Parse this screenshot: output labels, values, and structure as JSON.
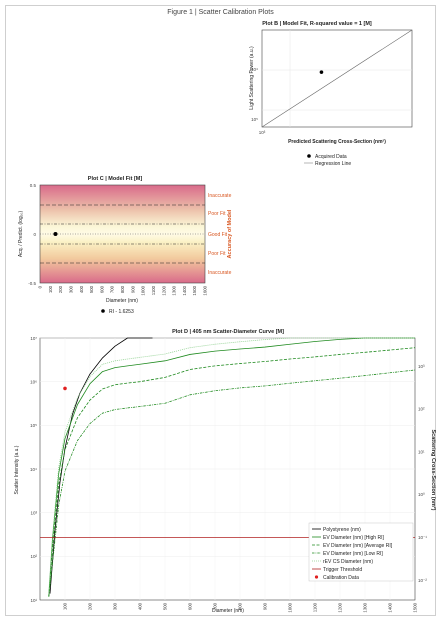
{
  "figure": {
    "title": "Figure 1 | Scatter Calibration Plots"
  },
  "chart_data": [
    {
      "id": "plot_b",
      "type": "line",
      "title": "Plot B | Model Fit, R-squared value = 1 [M]",
      "xlabel": "Predicted Scattering Cross-Section (nm²)",
      "ylabel": "Light Scattering Power (a.u.)",
      "x_scale": "log",
      "y_scale": "log",
      "x_ticks": [
        "10³"
      ],
      "y_ticks": [
        "10⁵",
        "10⁴"
      ],
      "series": [
        {
          "name": "Acquired Data",
          "kind": "scatter",
          "x": [
            3000
          ],
          "y": [
            8000
          ]
        },
        {
          "name": "Regression Line",
          "kind": "line",
          "x": [
            300,
            100000
          ],
          "y": [
            300,
            100000
          ]
        }
      ]
    },
    {
      "id": "plot_c",
      "type": "scatter",
      "title": "Plot C | Model Fit [M]",
      "xlabel": "Diameter (nm)",
      "ylabel": "Acq. / Predict. (log₁₀)",
      "secondary_ylabel": "Accuracy of Model",
      "xlim": [
        0,
        1600
      ],
      "ylim": [
        -0.5,
        0.5
      ],
      "x_ticks": [
        "0",
        "100",
        "200",
        "300",
        "400",
        "500",
        "600",
        "700",
        "800",
        "900",
        "1000",
        "1100",
        "1200",
        "1300",
        "1400",
        "1500",
        "1600"
      ],
      "y_ticks": [
        "0.5",
        "0",
        "-0.5"
      ],
      "zone_labels": [
        "Inaccurate",
        "Poor Fit",
        "Good Fit",
        "Poor Fit",
        "Inaccurate"
      ],
      "series": [
        {
          "name": "RI - 1.6253",
          "kind": "scatter",
          "x": [
            150
          ],
          "y": [
            0.0
          ]
        }
      ]
    },
    {
      "id": "plot_d",
      "type": "line",
      "title": "Plot D | 405 nm Scatter-Diameter Curve [M]",
      "xlabel": "Diameter (nm)",
      "ylabel": "Scatter Intensity (a.u.)",
      "secondary_ylabel": "Scattering Cross-Section (nm²)",
      "xlim": [
        0,
        1500
      ],
      "y_scale": "log",
      "ylim": [
        10,
        10000000
      ],
      "x_ticks": [
        "100",
        "200",
        "300",
        "400",
        "500",
        "600",
        "700",
        "800",
        "900",
        "1000",
        "1100",
        "1200",
        "1300",
        "1400",
        "1500"
      ],
      "y_ticks": [
        "10⁷",
        "10⁶",
        "10⁵",
        "10⁴",
        "10³",
        "10²",
        "10¹"
      ],
      "y2_ticks": [
        "10³",
        "10²",
        "10¹",
        "10⁰",
        "10⁻¹",
        "10⁻²"
      ],
      "series": [
        {
          "name": "Polystyrene (nm)",
          "kind": "line",
          "x": [
            40,
            60,
            80,
            100,
            130,
            160,
            200,
            250,
            300,
            350,
            400,
            450
          ],
          "y": [
            14,
            400,
            5000,
            30000,
            180000,
            550000,
            1500000,
            3500000,
            6500000,
            10000000,
            13000000,
            16000000
          ]
        },
        {
          "name": "EV Diameter (nm) [High RI]",
          "kind": "line",
          "x": [
            35,
            50,
            75,
            100,
            150,
            200,
            250,
            300,
            350,
            400,
            500,
            600,
            700,
            800,
            900,
            1000,
            1100,
            1200,
            1300,
            1400,
            1500
          ],
          "y": [
            12,
            250,
            8000,
            50000,
            300000,
            900000,
            1700000,
            2100000,
            2300000,
            2500000,
            3000000,
            4200000,
            5000000,
            5600000,
            6200000,
            7200000,
            8300000,
            9300000,
            10500000,
            12000000,
            13500000
          ]
        },
        {
          "name": "EV Diameter (nm) [Average RI]",
          "kind": "line",
          "x": [
            35,
            50,
            75,
            100,
            150,
            200,
            250,
            300,
            350,
            400,
            500,
            600,
            700,
            800,
            900,
            1000,
            1100,
            1200,
            1300,
            1400,
            1500
          ],
          "y": [
            12,
            150,
            4500,
            28000,
            150000,
            380000,
            680000,
            850000,
            930000,
            1000000,
            1250000,
            1900000,
            2300000,
            2600000,
            2900000,
            3300000,
            3700000,
            4200000,
            4700000,
            5300000,
            6000000
          ]
        },
        {
          "name": "EV Diameter (nm) [Low RI]",
          "kind": "line",
          "x": [
            35,
            50,
            75,
            100,
            150,
            200,
            250,
            300,
            350,
            400,
            500,
            600,
            700,
            800,
            900,
            1000,
            1100,
            1200,
            1300,
            1400,
            1500
          ],
          "y": [
            12,
            70,
            1500,
            9000,
            45000,
            110000,
            190000,
            230000,
            250000,
            270000,
            320000,
            500000,
            620000,
            720000,
            800000,
            920000,
            1050000,
            1200000,
            1380000,
            1600000,
            1850000
          ]
        },
        {
          "name": "rEV CS Diameter (nm)",
          "kind": "line",
          "x": [
            35,
            50,
            75,
            100,
            150,
            200,
            250,
            300,
            350,
            400,
            500,
            600,
            700,
            800,
            900,
            1000,
            1100,
            1200,
            1300,
            1400,
            1500
          ],
          "y": [
            14,
            300,
            11000,
            70000,
            430000,
            1300000,
            2500000,
            3000000,
            3300000,
            3600000,
            4300000,
            6000000,
            7200000,
            8200000,
            9200000,
            10800000,
            12500000,
            14000000,
            15500000,
            17500000,
            19500000
          ]
        },
        {
          "name": "Trigger Threshold",
          "kind": "line",
          "x": [
            0,
            1500
          ],
          "y": [
            270,
            270
          ]
        },
        {
          "name": "Calibration Data",
          "kind": "scatter",
          "x": [
            100
          ],
          "y": [
            700000
          ]
        }
      ]
    }
  ]
}
